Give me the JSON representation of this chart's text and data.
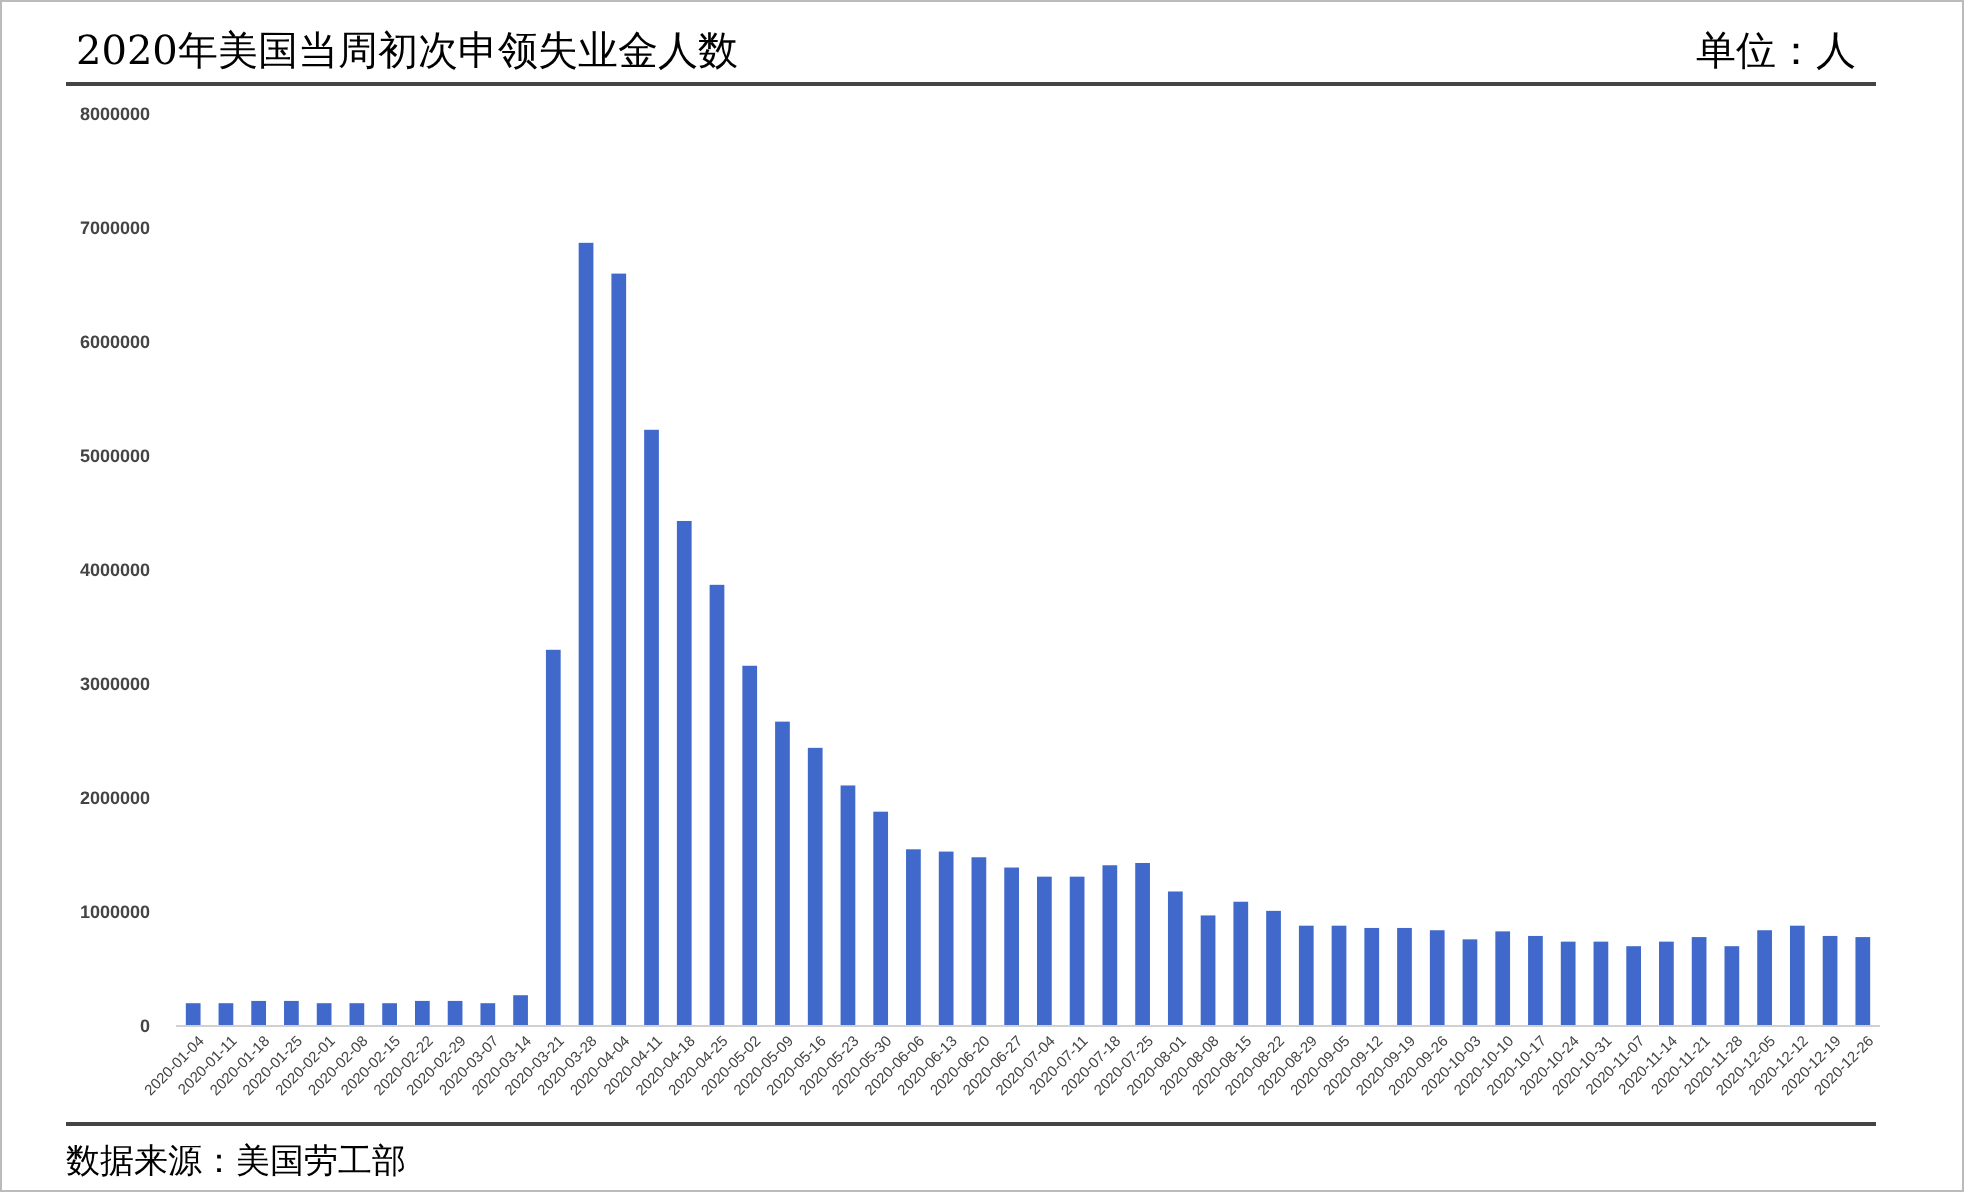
{
  "chart_data": {
    "type": "bar",
    "title": "2020年美国当周初次申领失业金人数",
    "subtitle": "单位：人",
    "annotations": [
      "数据来源：美国劳工部"
    ],
    "categories": [
      "2020-01-04",
      "2020-01-11",
      "2020-01-18",
      "2020-01-25",
      "2020-02-01",
      "2020-02-08",
      "2020-02-15",
      "2020-02-22",
      "2020-02-29",
      "2020-03-07",
      "2020-03-14",
      "2020-03-21",
      "2020-03-28",
      "2020-04-04",
      "2020-04-11",
      "2020-04-18",
      "2020-04-25",
      "2020-05-02",
      "2020-05-09",
      "2020-05-16",
      "2020-05-23",
      "2020-05-30",
      "2020-06-06",
      "2020-06-13",
      "2020-06-20",
      "2020-06-27",
      "2020-07-04",
      "2020-07-11",
      "2020-07-18",
      "2020-07-25",
      "2020-08-01",
      "2020-08-08",
      "2020-08-15",
      "2020-08-22",
      "2020-08-29",
      "2020-09-05",
      "2020-09-12",
      "2020-09-19",
      "2020-09-26",
      "2020-10-03",
      "2020-10-10",
      "2020-10-17",
      "2020-10-24",
      "2020-10-31",
      "2020-11-07",
      "2020-11-14",
      "2020-11-21",
      "2020-11-28",
      "2020-12-05",
      "2020-12-12",
      "2020-12-19",
      "2020-12-26"
    ],
    "values": [
      200000,
      200000,
      220000,
      220000,
      200000,
      200000,
      200000,
      220000,
      220000,
      200000,
      270000,
      3300000,
      6870000,
      6600000,
      5230000,
      4430000,
      3870000,
      3160000,
      2670000,
      2440000,
      2110000,
      1880000,
      1550000,
      1530000,
      1480000,
      1390000,
      1310000,
      1310000,
      1410000,
      1430000,
      1180000,
      970000,
      1090000,
      1010000,
      880000,
      880000,
      860000,
      860000,
      840000,
      760000,
      830000,
      790000,
      740000,
      740000,
      700000,
      740000,
      780000,
      700000,
      840000,
      880000,
      790000,
      780000
    ],
    "color": "#4169cc",
    "ylim": [
      0,
      8000000
    ],
    "yticks": [
      0,
      1000000,
      2000000,
      3000000,
      4000000,
      5000000,
      6000000,
      7000000,
      8000000
    ],
    "grid": false
  }
}
